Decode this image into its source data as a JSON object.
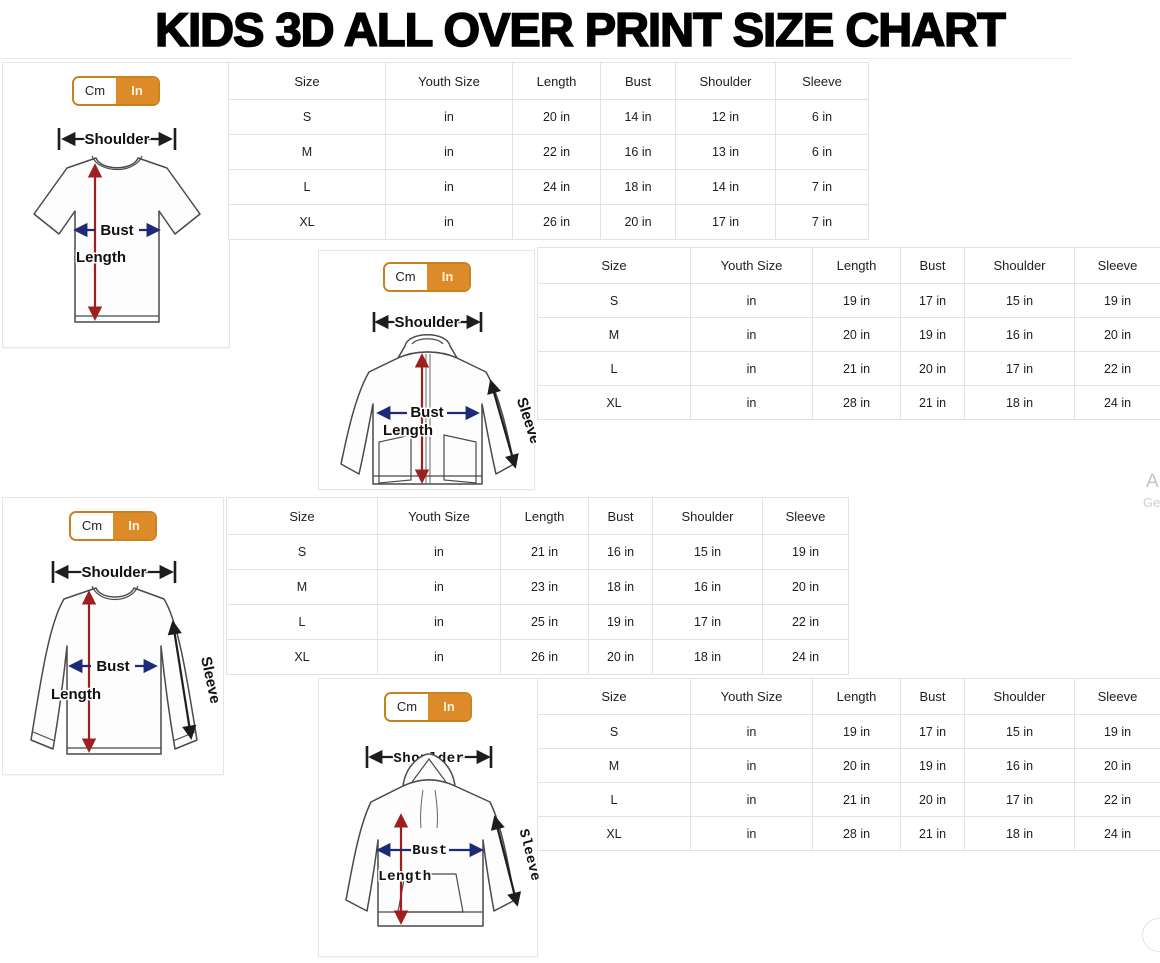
{
  "title": "KIDS 3D ALL OVER PRINT SIZE CHART",
  "unit_toggle": {
    "cm": "Cm",
    "in": "In",
    "selected": "In"
  },
  "diagram_labels": {
    "shoulder": "Shoulder",
    "bust": "Bust",
    "length": "Length",
    "sleeve": "Sleeve"
  },
  "columns": [
    "Size",
    "Youth Size",
    "Length",
    "Bust",
    "Shoulder",
    "Sleeve"
  ],
  "sections": [
    {
      "garment": "t-shirt",
      "rows": [
        [
          "S",
          "in",
          "20 in",
          "14 in",
          "12 in",
          "6 in"
        ],
        [
          "M",
          "in",
          "22 in",
          "16 in",
          "13 in",
          "6 in"
        ],
        [
          "L",
          "in",
          "24 in",
          "18 in",
          "14 in",
          "7 in"
        ],
        [
          "XL",
          "in",
          "26 in",
          "20 in",
          "17 in",
          "7 in"
        ]
      ]
    },
    {
      "garment": "zip-hoodie",
      "rows": [
        [
          "S",
          "in",
          "19 in",
          "17 in",
          "15 in",
          "19 in"
        ],
        [
          "M",
          "in",
          "20 in",
          "19 in",
          "16 in",
          "20 in"
        ],
        [
          "L",
          "in",
          "21 in",
          "20 in",
          "17 in",
          "22 in"
        ],
        [
          "XL",
          "in",
          "28 in",
          "21 in",
          "18 in",
          "24 in"
        ]
      ]
    },
    {
      "garment": "long-sleeve-shirt",
      "rows": [
        [
          "S",
          "in",
          "21 in",
          "16 in",
          "15 in",
          "19 in"
        ],
        [
          "M",
          "in",
          "23 in",
          "18 in",
          "16 in",
          "20 in"
        ],
        [
          "L",
          "in",
          "25 in",
          "19 in",
          "17 in",
          "22 in"
        ],
        [
          "XL",
          "in",
          "26 in",
          "20 in",
          "18 in",
          "24 in"
        ]
      ]
    },
    {
      "garment": "hoodie",
      "rows": [
        [
          "S",
          "in",
          "19 in",
          "17 in",
          "15 in",
          "19 in"
        ],
        [
          "M",
          "in",
          "20 in",
          "19 in",
          "16 in",
          "20 in"
        ],
        [
          "L",
          "in",
          "21 in",
          "20 in",
          "17 in",
          "22 in"
        ],
        [
          "XL",
          "in",
          "28 in",
          "21 in",
          "18 in",
          "24 in"
        ]
      ]
    }
  ],
  "colors": {
    "accent_orange": "#dd8a28",
    "toggle_border": "#c8821f",
    "arrow_red": "#9e1f1f",
    "arrow_navy": "#1d2a75",
    "arrow_black": "#1d1d1d"
  },
  "edge_fragments": {
    "line1": "A",
    "line2": "Ge"
  }
}
